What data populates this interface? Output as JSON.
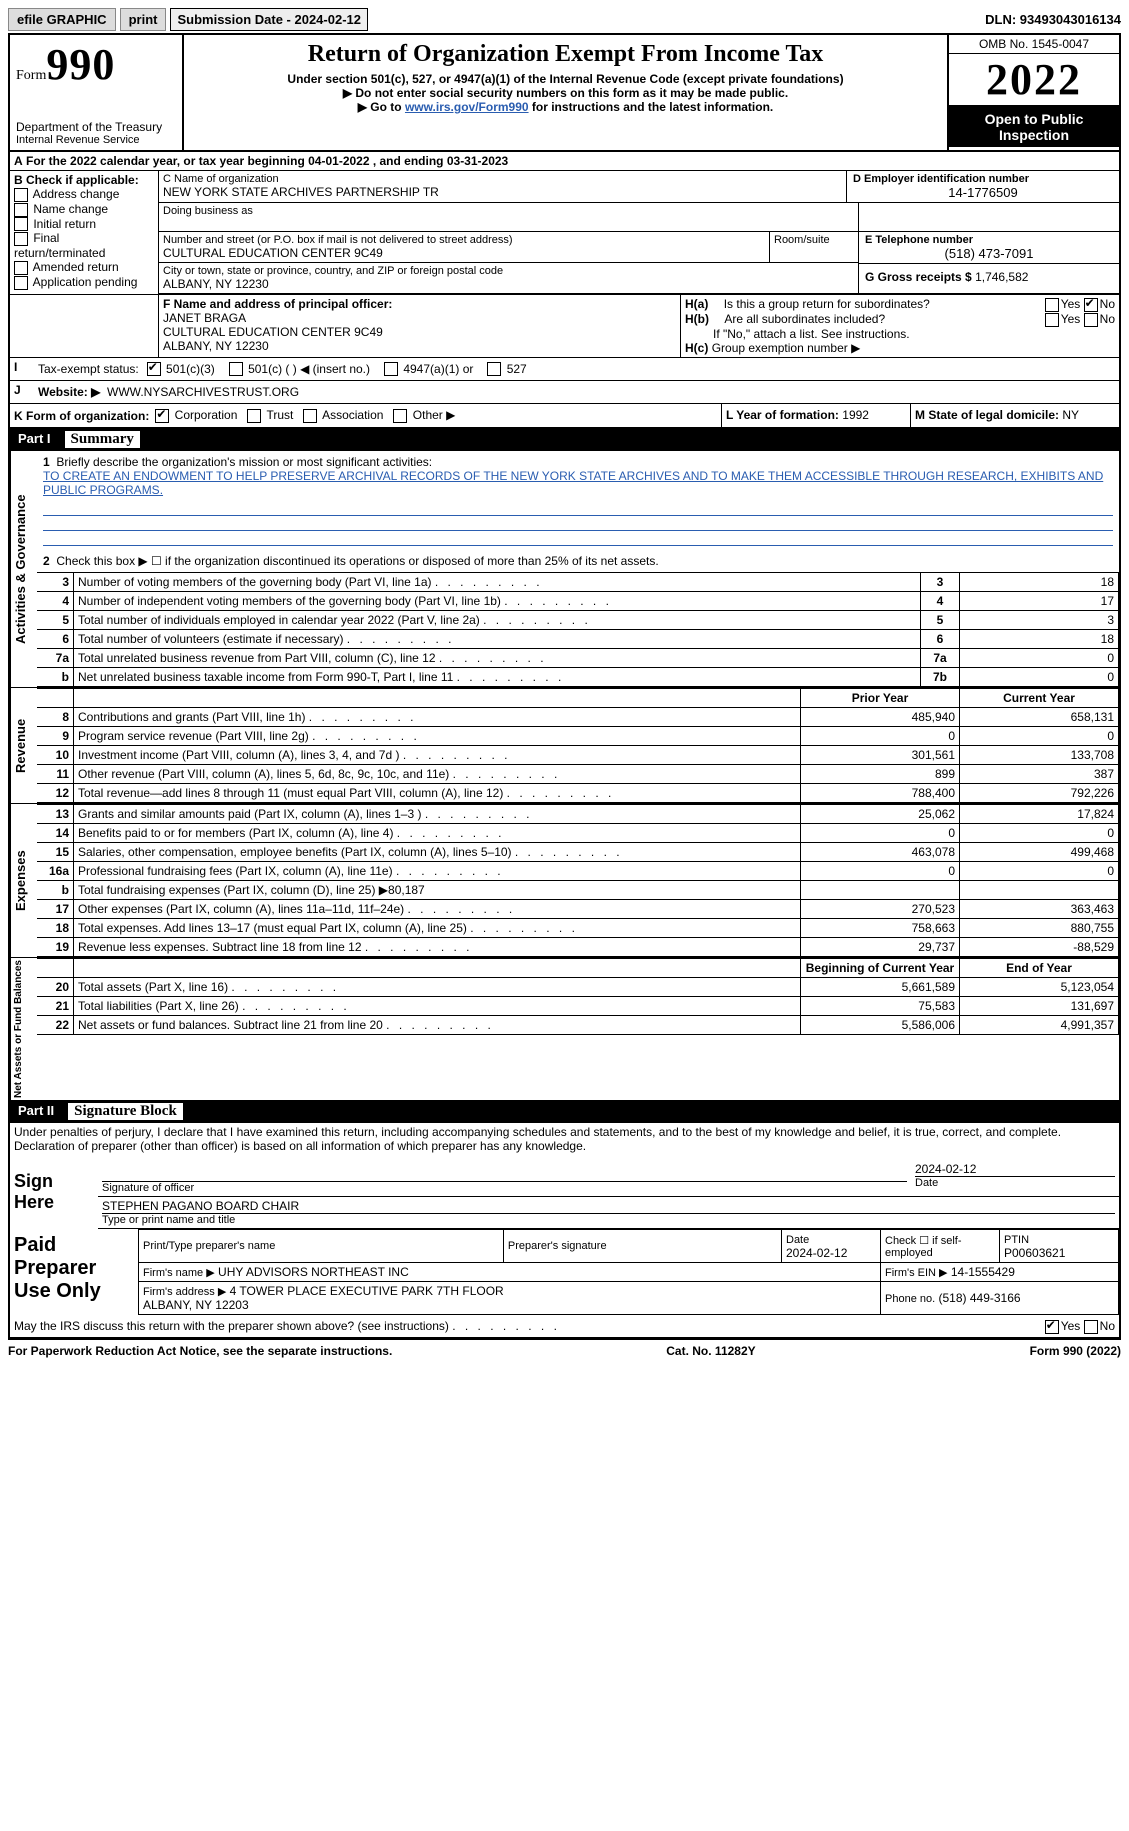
{
  "topbar": {
    "efile": "efile GRAPHIC",
    "print": "print",
    "submission": "Submission Date - 2024-02-12",
    "dln": "DLN: 93493043016134"
  },
  "header": {
    "form": "Form",
    "formnum": "990",
    "dept": "Department of the Treasury",
    "irs": "Internal Revenue Service",
    "title": "Return of Organization Exempt From Income Tax",
    "sub1": "Under section 501(c), 527, or 4947(a)(1) of the Internal Revenue Code (except private foundations)",
    "sub2": "▶ Do not enter social security numbers on this form as it may be made public.",
    "sub3_pre": "▶ Go to ",
    "sub3_link": "www.irs.gov/Form990",
    "sub3_post": " for instructions and the latest information.",
    "omb": "OMB No. 1545-0047",
    "year": "2022",
    "open": "Open to Public Inspection"
  },
  "A": {
    "text": "For the 2022 calendar year, or tax year beginning 04-01-2022   , and ending 03-31-2023"
  },
  "B": {
    "label": "B Check if applicable:",
    "items": [
      "Address change",
      "Name change",
      "Initial return",
      "Final return/terminated",
      "Amended return",
      "Application pending"
    ]
  },
  "C": {
    "name_label": "C Name of organization",
    "name": "NEW YORK STATE ARCHIVES PARTNERSHIP TR",
    "dba_label": "Doing business as",
    "addr_label": "Number and street (or P.O. box if mail is not delivered to street address)",
    "room_label": "Room/suite",
    "addr": "CULTURAL EDUCATION CENTER 9C49",
    "city_label": "City or town, state or province, country, and ZIP or foreign postal code",
    "city": "ALBANY, NY  12230"
  },
  "D": {
    "label": "D Employer identification number",
    "val": "14-1776509"
  },
  "E": {
    "label": "E Telephone number",
    "val": "(518) 473-7091"
  },
  "G": {
    "label": "G Gross receipts $",
    "val": "1,746,582"
  },
  "F": {
    "label": "F  Name and address of principal officer:",
    "name": "JANET BRAGA",
    "addr": "CULTURAL EDUCATION CENTER 9C49",
    "city": "ALBANY, NY  12230"
  },
  "H": {
    "a": "Is this a group return for subordinates?",
    "b": "Are all subordinates included?",
    "bnote": "If \"No,\" attach a list. See instructions.",
    "c": "Group exemption number ▶",
    "yes": "Yes",
    "no": "No"
  },
  "I": {
    "label": "Tax-exempt status:",
    "opts": [
      "501(c)(3)",
      "501(c) (  ) ◀ (insert no.)",
      "4947(a)(1) or",
      "527"
    ]
  },
  "J": {
    "label": "Website: ▶",
    "val": "WWW.NYSARCHIVESTRUST.ORG"
  },
  "K": {
    "label": "K Form of organization:",
    "opts": [
      "Corporation",
      "Trust",
      "Association",
      "Other ▶"
    ]
  },
  "L": {
    "label": "L Year of formation:",
    "val": "1992"
  },
  "M": {
    "label": "M State of legal domicile:",
    "val": "NY"
  },
  "partI": {
    "num": "Part I",
    "title": "Summary",
    "q1": "Briefly describe the organization's mission or most significant activities:",
    "mission": "TO CREATE AN ENDOWMENT TO HELP PRESERVE ARCHIVAL RECORDS OF THE NEW YORK STATE ARCHIVES AND TO MAKE THEM ACCESSIBLE THROUGH RESEARCH, EXHIBITS AND PUBLIC PROGRAMS.",
    "q2": "Check this box ▶ ☐ if the organization discontinued its operations or disposed of more than 25% of its net assets.",
    "rows": [
      {
        "n": "3",
        "d": "Number of voting members of the governing body (Part VI, line 1a)",
        "box": "3",
        "v": "18"
      },
      {
        "n": "4",
        "d": "Number of independent voting members of the governing body (Part VI, line 1b)",
        "box": "4",
        "v": "17"
      },
      {
        "n": "5",
        "d": "Total number of individuals employed in calendar year 2022 (Part V, line 2a)",
        "box": "5",
        "v": "3"
      },
      {
        "n": "6",
        "d": "Total number of volunteers (estimate if necessary)",
        "box": "6",
        "v": "18"
      },
      {
        "n": "7a",
        "d": "Total unrelated business revenue from Part VIII, column (C), line 12",
        "box": "7a",
        "v": "0"
      },
      {
        "n": "b",
        "d": "Net unrelated business taxable income from Form 990-T, Part I, line 11",
        "box": "7b",
        "v": "0"
      }
    ],
    "prior": "Prior Year",
    "current": "Current Year",
    "rev_label": "Revenue",
    "rev": [
      {
        "n": "8",
        "d": "Contributions and grants (Part VIII, line 1h)",
        "p": "485,940",
        "c": "658,131"
      },
      {
        "n": "9",
        "d": "Program service revenue (Part VIII, line 2g)",
        "p": "0",
        "c": "0"
      },
      {
        "n": "10",
        "d": "Investment income (Part VIII, column (A), lines 3, 4, and 7d )",
        "p": "301,561",
        "c": "133,708"
      },
      {
        "n": "11",
        "d": "Other revenue (Part VIII, column (A), lines 5, 6d, 8c, 9c, 10c, and 11e)",
        "p": "899",
        "c": "387"
      },
      {
        "n": "12",
        "d": "Total revenue—add lines 8 through 11 (must equal Part VIII, column (A), line 12)",
        "p": "788,400",
        "c": "792,226"
      }
    ],
    "exp_label": "Expenses",
    "exp": [
      {
        "n": "13",
        "d": "Grants and similar amounts paid (Part IX, column (A), lines 1–3 )",
        "p": "25,062",
        "c": "17,824"
      },
      {
        "n": "14",
        "d": "Benefits paid to or for members (Part IX, column (A), line 4)",
        "p": "0",
        "c": "0"
      },
      {
        "n": "15",
        "d": "Salaries, other compensation, employee benefits (Part IX, column (A), lines 5–10)",
        "p": "463,078",
        "c": "499,468"
      },
      {
        "n": "16a",
        "d": "Professional fundraising fees (Part IX, column (A), line 11e)",
        "p": "0",
        "c": "0"
      },
      {
        "n": "b",
        "d": "Total fundraising expenses (Part IX, column (D), line 25) ▶80,187",
        "p": "",
        "c": "",
        "shade": true
      },
      {
        "n": "17",
        "d": "Other expenses (Part IX, column (A), lines 11a–11d, 11f–24e)",
        "p": "270,523",
        "c": "363,463"
      },
      {
        "n": "18",
        "d": "Total expenses. Add lines 13–17 (must equal Part IX, column (A), line 25)",
        "p": "758,663",
        "c": "880,755"
      },
      {
        "n": "19",
        "d": "Revenue less expenses. Subtract line 18 from line 12",
        "p": "29,737",
        "c": "-88,529"
      }
    ],
    "na_label": "Net Assets or Fund Balances",
    "boy": "Beginning of Current Year",
    "eoy": "End of Year",
    "na": [
      {
        "n": "20",
        "d": "Total assets (Part X, line 16)",
        "p": "5,661,589",
        "c": "5,123,054"
      },
      {
        "n": "21",
        "d": "Total liabilities (Part X, line 26)",
        "p": "75,583",
        "c": "131,697"
      },
      {
        "n": "22",
        "d": "Net assets or fund balances. Subtract line 21 from line 20",
        "p": "5,586,006",
        "c": "4,991,357"
      }
    ]
  },
  "partII": {
    "num": "Part II",
    "title": "Signature Block",
    "decl": "Under penalties of perjury, I declare that I have examined this return, including accompanying schedules and statements, and to the best of my knowledge and belief, it is true, correct, and complete. Declaration of preparer (other than officer) is based on all information of which preparer has any knowledge.",
    "sign": "Sign Here",
    "sigoff": "Signature of officer",
    "date": "Date",
    "sigdate": "2024-02-12",
    "officer": "STEPHEN PAGANO  BOARD CHAIR",
    "typelab": "Type or print name and title",
    "paid": "Paid Preparer Use Only",
    "pname": "Print/Type preparer's name",
    "psig": "Preparer's signature",
    "pdate": "Date",
    "pdateval": "2024-02-12",
    "checkif": "Check ☐ if self-employed",
    "ptin": "PTIN",
    "ptinval": "P00603621",
    "firm": "Firm's name   ▶",
    "firmval": "UHY ADVISORS NORTHEAST INC",
    "ein": "Firm's EIN ▶",
    "einval": "14-1555429",
    "faddr": "Firm's address ▶",
    "faddrval": "4 TOWER PLACE EXECUTIVE PARK 7TH FLOOR\nALBANY, NY  12203",
    "phone": "Phone no.",
    "phoneval": "(518) 449-3166",
    "discuss": "May the IRS discuss this return with the preparer shown above? (see instructions)"
  },
  "footer": {
    "pra": "For Paperwork Reduction Act Notice, see the separate instructions.",
    "cat": "Cat. No. 11282Y",
    "form": "Form 990 (2022)"
  }
}
